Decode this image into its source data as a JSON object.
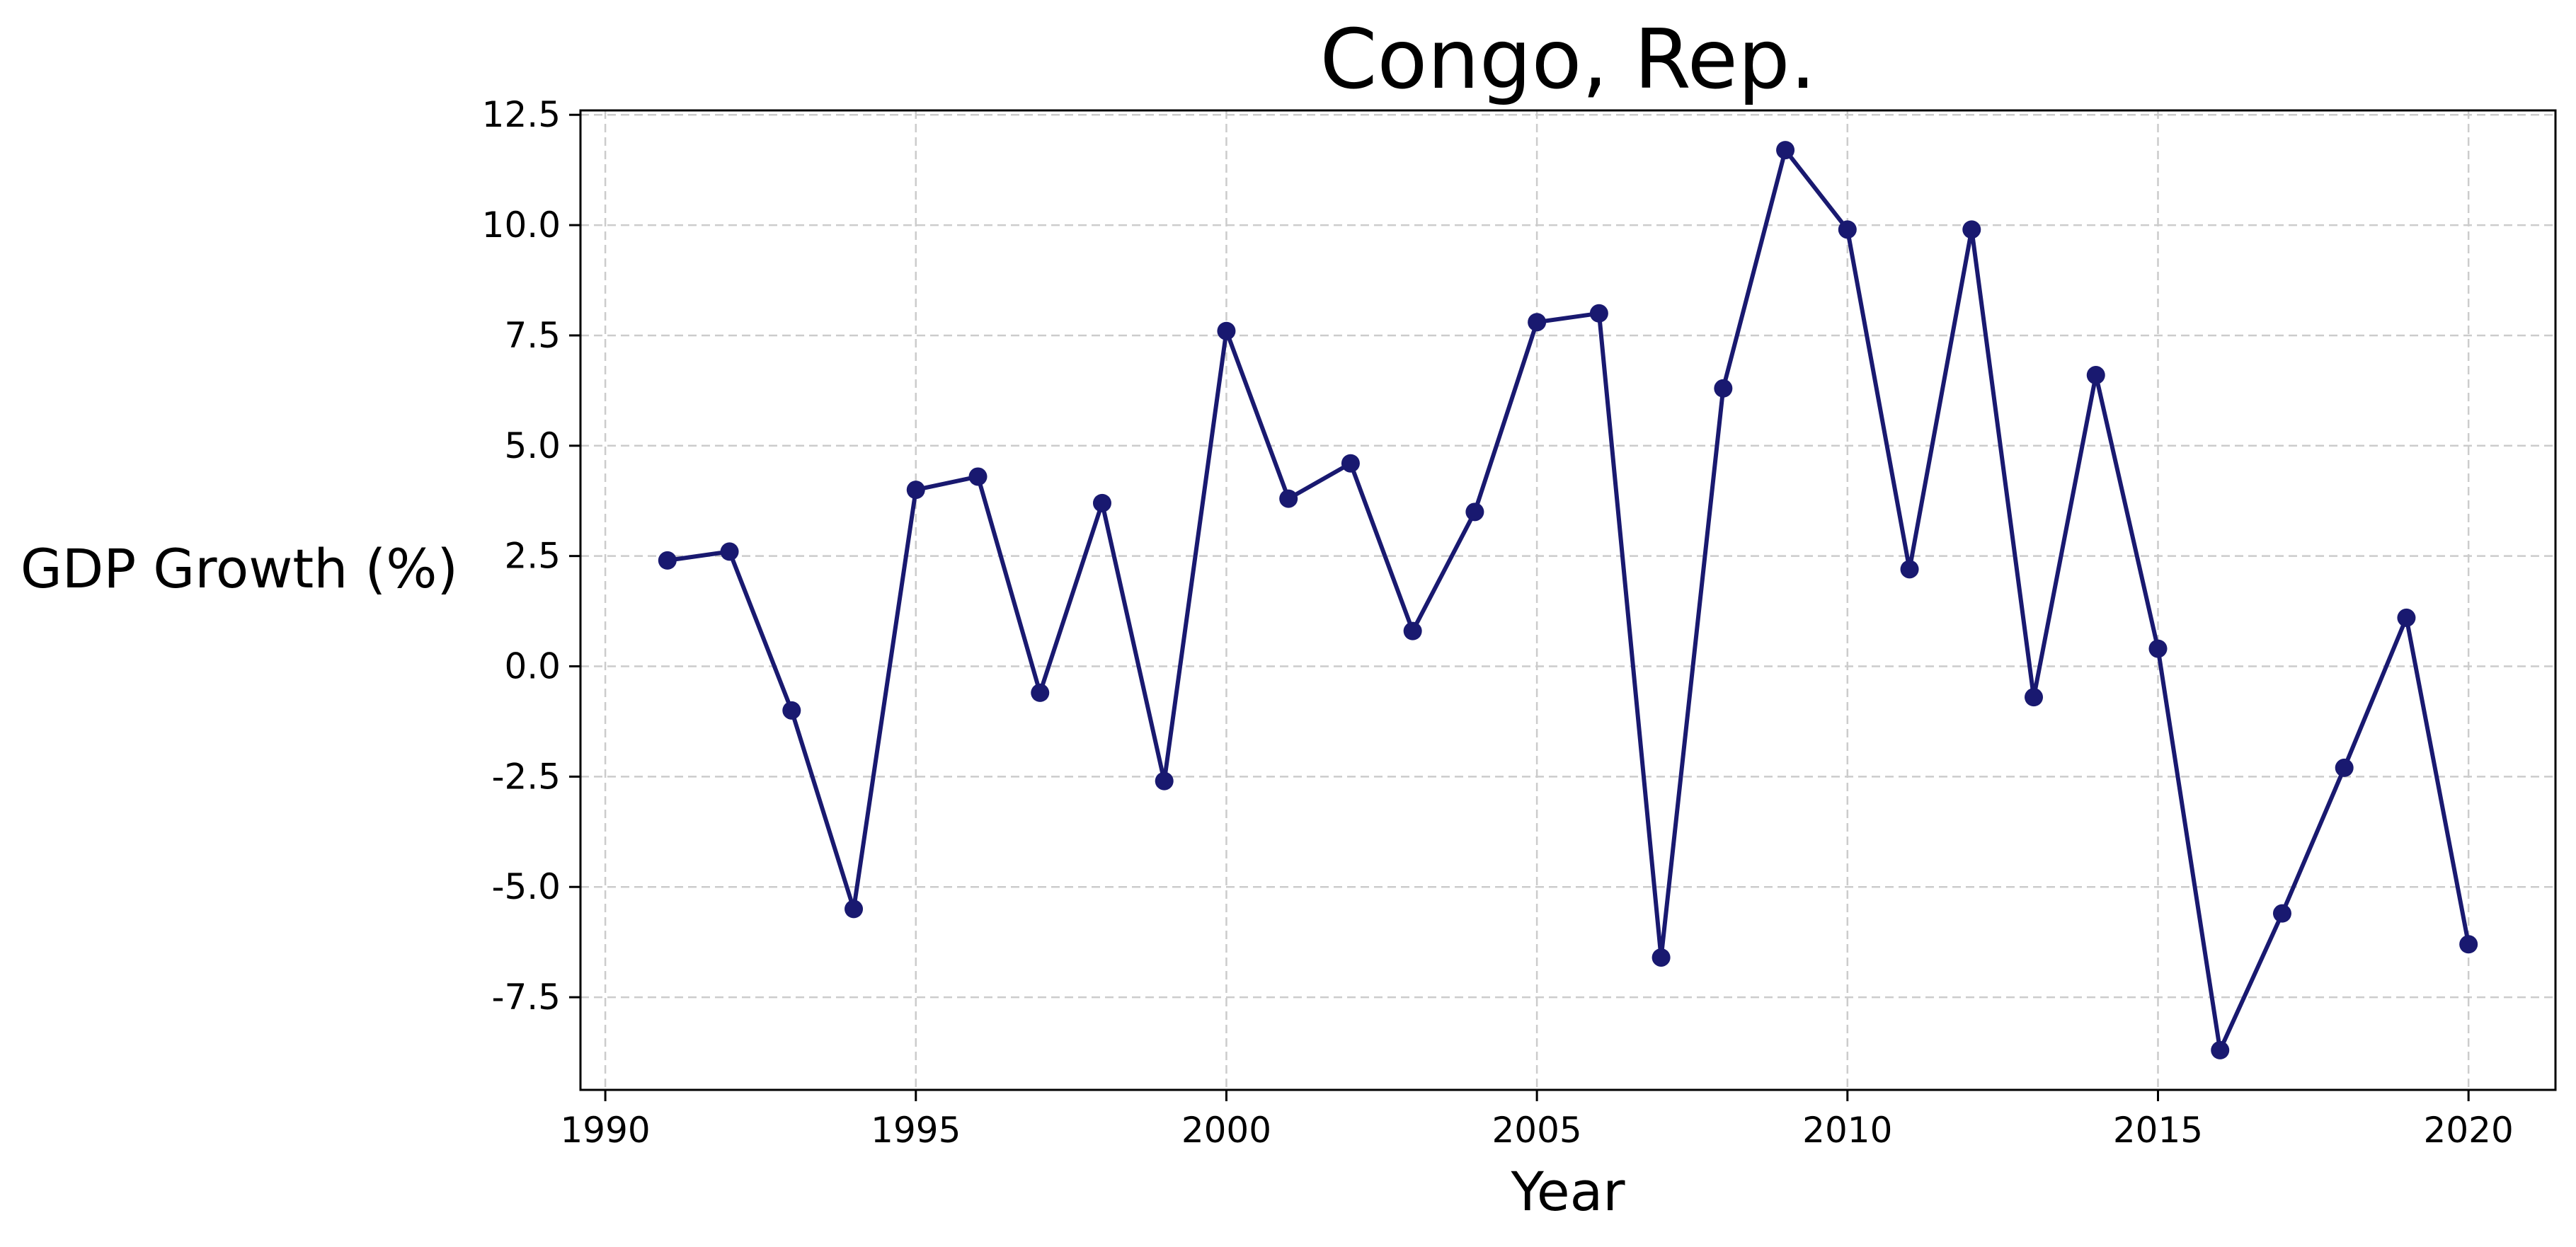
{
  "chart_data": {
    "type": "line",
    "title": "Congo, Rep.",
    "xlabel": "Year",
    "ylabel": "GDP Growth (%)",
    "xlim": [
      1989.6,
      2021.4
    ],
    "ylim": [
      -9.6,
      12.6
    ],
    "xticks": [
      1990,
      1995,
      2000,
      2005,
      2010,
      2015,
      2020
    ],
    "xtick_labels": [
      "1990",
      "1995",
      "2000",
      "2005",
      "2010",
      "2015",
      "2020"
    ],
    "yticks": [
      -7.5,
      -5.0,
      -2.5,
      0.0,
      2.5,
      5.0,
      7.5,
      10.0,
      12.5
    ],
    "ytick_labels": [
      "-7.5",
      "-5.0",
      "-2.5",
      "0.0",
      "2.5",
      "5.0",
      "7.5",
      "10.0",
      "12.5"
    ],
    "grid": true,
    "legend": "none",
    "series": [
      {
        "color": "#191970",
        "x": [
          1991,
          1992,
          1993,
          1994,
          1995,
          1996,
          1997,
          1998,
          1999,
          2000,
          2001,
          2002,
          2003,
          2004,
          2005,
          2006,
          2007,
          2008,
          2009,
          2010,
          2011,
          2012,
          2013,
          2014,
          2015,
          2016,
          2017,
          2018,
          2019,
          2020
        ],
        "y": [
          2.4,
          2.6,
          -1.0,
          -5.5,
          4.0,
          4.3,
          -0.6,
          3.7,
          -2.6,
          7.6,
          3.8,
          4.6,
          0.8,
          3.5,
          7.8,
          8.0,
          -6.6,
          6.3,
          11.7,
          9.9,
          2.2,
          9.9,
          -0.7,
          6.6,
          0.4,
          -8.7,
          -5.6,
          -2.3,
          1.1,
          -6.3
        ]
      }
    ]
  }
}
